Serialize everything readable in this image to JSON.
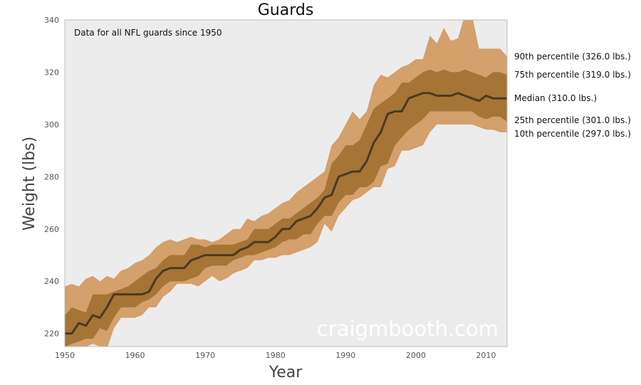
{
  "chart_data": {
    "type": "area",
    "title": "Guards",
    "xlabel": "Year",
    "ylabel": "Weight (lbs)",
    "annotation": "Data for all NFL guards since 1950",
    "watermark": "craigmbooth.com",
    "xlim": [
      1950,
      2013
    ],
    "ylim": [
      215,
      340
    ],
    "xticks": [
      1950,
      1960,
      1970,
      1980,
      1990,
      2000,
      2010
    ],
    "yticks": [
      220,
      240,
      260,
      280,
      300,
      320,
      340
    ],
    "grid": false,
    "background_color": "#ececec",
    "colors": {
      "outer_band": "#d4a06c",
      "inner_band": "#a67434",
      "median_line": "#4a3a22"
    },
    "x": [
      1950,
      1951,
      1952,
      1953,
      1954,
      1955,
      1956,
      1957,
      1958,
      1959,
      1960,
      1961,
      1962,
      1963,
      1964,
      1965,
      1966,
      1967,
      1968,
      1969,
      1970,
      1971,
      1972,
      1973,
      1974,
      1975,
      1976,
      1977,
      1978,
      1979,
      1980,
      1981,
      1982,
      1983,
      1984,
      1985,
      1986,
      1987,
      1988,
      1989,
      1990,
      1991,
      1992,
      1993,
      1994,
      1995,
      1996,
      1997,
      1998,
      1999,
      2000,
      2001,
      2002,
      2003,
      2004,
      2005,
      2006,
      2007,
      2008,
      2009,
      2010,
      2011,
      2012,
      2013
    ],
    "series": [
      {
        "name": "90th percentile",
        "legend_label": "90th percentile (326.0 lbs.)",
        "values": [
          238,
          239,
          238,
          241,
          242,
          240,
          242,
          241,
          244,
          245,
          247,
          248,
          250,
          253,
          255,
          256,
          255,
          256,
          257,
          256,
          256,
          255,
          256,
          258,
          260,
          260,
          264,
          263,
          265,
          266,
          268,
          270,
          271,
          274,
          276,
          278,
          280,
          282,
          292,
          295,
          300,
          305,
          302,
          305,
          315,
          319,
          318,
          320,
          322,
          323,
          325,
          325,
          334,
          331,
          337,
          332,
          333,
          342,
          342,
          329,
          329,
          329,
          329,
          326
        ]
      },
      {
        "name": "75th percentile",
        "legend_label": "75th percentile (319.0 lbs.)",
        "values": [
          227,
          230,
          229,
          228,
          235,
          235,
          235,
          236,
          237,
          238,
          240,
          242,
          244,
          245,
          248,
          250,
          250,
          250,
          254,
          254,
          253,
          254,
          254,
          254,
          254,
          255,
          256,
          260,
          260,
          260,
          262,
          264,
          264,
          266,
          268,
          270,
          272,
          275,
          285,
          288,
          292,
          292,
          294,
          300,
          306,
          308,
          310,
          312,
          316,
          316,
          318,
          320,
          321,
          320,
          321,
          320,
          320,
          321,
          320,
          319,
          318,
          320,
          320,
          319
        ]
      },
      {
        "name": "Median",
        "legend_label": "Median (310.0 lbs.)",
        "values": [
          220,
          220,
          224,
          223,
          227,
          226,
          230,
          235,
          235,
          235,
          235,
          235,
          236,
          241,
          244,
          245,
          245,
          245,
          248,
          249,
          250,
          250,
          250,
          250,
          250,
          252,
          253,
          255,
          255,
          255,
          257,
          260,
          260,
          263,
          264,
          265,
          268,
          272,
          273,
          280,
          281,
          282,
          282,
          286,
          293,
          297,
          304,
          305,
          305,
          310,
          311,
          312,
          312,
          311,
          311,
          311,
          312,
          311,
          310,
          309,
          311,
          310,
          310,
          310
        ]
      },
      {
        "name": "25th percentile",
        "legend_label": "25th percentile (301.0 lbs.)",
        "values": [
          215,
          216,
          217,
          218,
          218,
          222,
          221,
          226,
          230,
          230,
          230,
          232,
          233,
          235,
          238,
          240,
          240,
          240,
          241,
          242,
          245,
          246,
          246,
          246,
          248,
          249,
          250,
          250,
          251,
          252,
          253,
          255,
          256,
          256,
          258,
          258,
          262,
          265,
          265,
          270,
          273,
          273,
          276,
          276,
          278,
          284,
          285,
          292,
          295,
          298,
          300,
          302,
          305,
          305,
          305,
          305,
          305,
          305,
          305,
          303,
          302,
          303,
          303,
          301
        ]
      },
      {
        "name": "10th percentile",
        "legend_label": "10th percentile (297.0 lbs.)",
        "values": [
          213,
          213,
          214,
          215,
          216,
          215,
          214,
          222,
          226,
          226,
          226,
          227,
          230,
          230,
          234,
          236,
          239,
          239,
          239,
          238,
          240,
          242,
          240,
          241,
          243,
          244,
          245,
          248,
          248,
          249,
          249,
          250,
          250,
          251,
          252,
          253,
          255,
          262,
          259,
          265,
          268,
          271,
          272,
          274,
          276,
          276,
          283,
          284,
          290,
          290,
          291,
          292,
          297,
          300,
          300,
          300,
          300,
          300,
          300,
          299,
          298,
          298,
          297,
          297
        ]
      }
    ]
  }
}
